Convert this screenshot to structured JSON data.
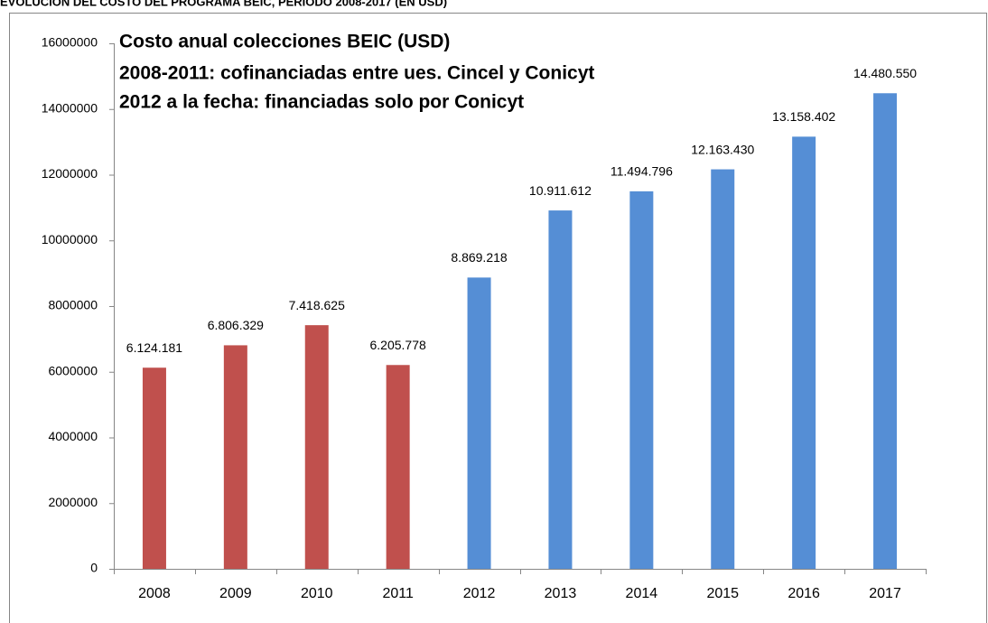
{
  "chart_data": {
    "type": "bar",
    "title": "EVOLUCIÓN DEL COSTO DEL PROGRAMA BEIC, PERIODO 2008-2017 (EN USD)",
    "annotations": [
      "Costo anual colecciones BEIC (USD)",
      "2008-2011: cofinanciadas entre ues. Cincel y Conicyt",
      "2012 a la fecha: financiadas solo por Conicyt"
    ],
    "categories": [
      "2008",
      "2009",
      "2010",
      "2011",
      "2012",
      "2013",
      "2014",
      "2015",
      "2016",
      "2017"
    ],
    "values": [
      6124181,
      6806329,
      7418625,
      6205778,
      8869218,
      10911612,
      11494796,
      12163430,
      13158402,
      14480550
    ],
    "value_labels": [
      "6.124.181",
      "6.806.329",
      "7.418.625",
      "6.205.778",
      "8.869.218",
      "10.911.612",
      "11.494.796",
      "12.163.430",
      "13.158.402",
      "14.480.550"
    ],
    "colors": [
      "#c0504d",
      "#c0504d",
      "#c0504d",
      "#c0504d",
      "#558ed5",
      "#558ed5",
      "#558ed5",
      "#558ed5",
      "#558ed5",
      "#558ed5"
    ],
    "ylim": [
      0,
      16000000
    ],
    "yticks": [
      0,
      2000000,
      4000000,
      6000000,
      8000000,
      10000000,
      12000000,
      14000000,
      16000000
    ],
    "grid": false
  }
}
